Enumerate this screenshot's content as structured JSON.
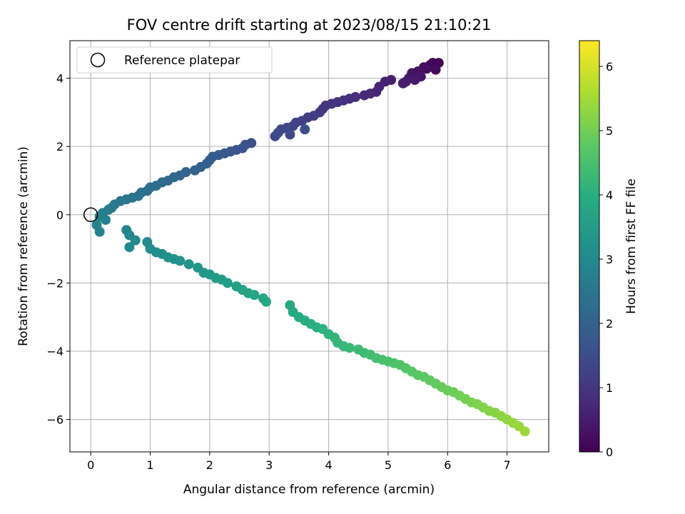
{
  "chart_data": {
    "type": "scatter",
    "title": "FOV centre drift starting at 2023/08/15 21:10:21",
    "xlabel": "Angular distance from reference (arcmin)",
    "ylabel": "Rotation from reference (arcmin)",
    "xlim": [
      -0.35,
      7.7
    ],
    "ylim": [
      -6.95,
      5.1
    ],
    "xticks": [
      0,
      1,
      2,
      3,
      4,
      5,
      6,
      7
    ],
    "yticks": [
      -6,
      -4,
      -2,
      0,
      2,
      4
    ],
    "grid": true,
    "legend": {
      "location": "top-left",
      "entries": [
        {
          "label": "Reference platepar",
          "marker": "open-circle"
        }
      ]
    },
    "reference_point": {
      "x": 0,
      "y": 0
    },
    "colorbar": {
      "label": "Hours from first FF file",
      "min": 0,
      "max": 6.4,
      "ticks": [
        0,
        1,
        2,
        3,
        4,
        5,
        6
      ],
      "colormap": "viridis"
    },
    "series": [
      {
        "description_note": "",
        "points": [
          [
            5.75,
            4.45,
            0.05
          ],
          [
            5.85,
            4.45,
            0.08
          ],
          [
            5.7,
            4.38,
            0.12
          ],
          [
            5.6,
            4.32,
            0.16
          ],
          [
            5.8,
            4.25,
            0.2
          ],
          [
            5.65,
            4.28,
            0.24
          ],
          [
            5.5,
            4.2,
            0.28
          ],
          [
            5.4,
            4.15,
            0.32
          ],
          [
            5.55,
            4.05,
            0.36
          ],
          [
            5.35,
            4.0,
            0.4
          ],
          [
            5.45,
            3.95,
            0.44
          ],
          [
            5.3,
            3.9,
            0.48
          ],
          [
            5.25,
            3.85,
            0.52
          ],
          [
            5.05,
            3.95,
            0.56
          ],
          [
            4.95,
            3.9,
            0.6
          ],
          [
            4.85,
            3.75,
            0.64
          ],
          [
            4.8,
            3.6,
            0.68
          ],
          [
            4.7,
            3.55,
            0.72
          ],
          [
            4.6,
            3.5,
            0.76
          ],
          [
            4.45,
            3.45,
            0.8
          ],
          [
            4.35,
            3.4,
            0.84
          ],
          [
            4.25,
            3.35,
            0.88
          ],
          [
            4.15,
            3.3,
            0.92
          ],
          [
            4.05,
            3.25,
            0.96
          ],
          [
            3.95,
            3.2,
            1.0
          ],
          [
            3.9,
            3.1,
            1.04
          ],
          [
            3.85,
            3.0,
            1.08
          ],
          [
            3.75,
            2.9,
            1.12
          ],
          [
            3.65,
            2.85,
            1.16
          ],
          [
            3.55,
            2.75,
            1.2
          ],
          [
            3.45,
            2.7,
            1.24
          ],
          [
            3.4,
            2.6,
            1.28
          ],
          [
            3.3,
            2.55,
            1.32
          ],
          [
            3.2,
            2.5,
            1.36
          ],
          [
            3.15,
            2.4,
            1.4
          ],
          [
            3.1,
            2.3,
            1.44
          ],
          [
            3.35,
            2.35,
            1.48
          ],
          [
            3.6,
            2.5,
            1.52
          ],
          [
            2.7,
            2.1,
            1.56
          ],
          [
            2.6,
            2.05,
            1.6
          ],
          [
            2.55,
            1.95,
            1.64
          ],
          [
            2.45,
            1.9,
            1.68
          ],
          [
            2.35,
            1.85,
            1.72
          ],
          [
            2.25,
            1.8,
            1.76
          ],
          [
            2.15,
            1.75,
            1.8
          ],
          [
            2.05,
            1.7,
            1.84
          ],
          [
            2.0,
            1.6,
            1.88
          ],
          [
            1.95,
            1.5,
            1.92
          ],
          [
            1.85,
            1.4,
            1.96
          ],
          [
            1.75,
            1.3,
            2.0
          ],
          [
            1.6,
            1.25,
            2.04
          ],
          [
            1.5,
            1.15,
            2.08
          ],
          [
            1.4,
            1.1,
            2.12
          ],
          [
            1.3,
            1.0,
            2.16
          ],
          [
            1.2,
            0.95,
            2.2
          ],
          [
            1.1,
            0.85,
            2.24
          ],
          [
            1.0,
            0.8,
            2.28
          ],
          [
            0.95,
            0.7,
            2.32
          ],
          [
            0.85,
            0.65,
            2.36
          ],
          [
            0.8,
            0.55,
            2.4
          ],
          [
            0.7,
            0.5,
            2.44
          ],
          [
            0.6,
            0.45,
            2.48
          ],
          [
            0.5,
            0.4,
            2.52
          ],
          [
            0.4,
            0.3,
            2.56
          ],
          [
            0.35,
            0.2,
            2.6
          ],
          [
            0.3,
            0.15,
            2.64
          ],
          [
            0.2,
            0.05,
            2.68
          ],
          [
            0.15,
            -0.05,
            2.72
          ],
          [
            0.25,
            -0.15,
            2.76
          ],
          [
            0.1,
            -0.3,
            2.8
          ],
          [
            0.15,
            -0.5,
            2.84
          ],
          [
            0.6,
            -0.45,
            2.88
          ],
          [
            0.65,
            -0.6,
            2.92
          ],
          [
            0.75,
            -0.75,
            2.96
          ],
          [
            0.65,
            -0.95,
            3.0
          ],
          [
            0.95,
            -0.8,
            3.04
          ],
          [
            1.0,
            -1.0,
            3.08
          ],
          [
            1.1,
            -1.1,
            3.12
          ],
          [
            1.2,
            -1.15,
            3.16
          ],
          [
            1.3,
            -1.25,
            3.2
          ],
          [
            1.4,
            -1.3,
            3.24
          ],
          [
            1.5,
            -1.35,
            3.28
          ],
          [
            1.65,
            -1.45,
            3.32
          ],
          [
            1.8,
            -1.55,
            3.36
          ],
          [
            1.9,
            -1.7,
            3.4
          ],
          [
            2.0,
            -1.75,
            3.44
          ],
          [
            2.1,
            -1.85,
            3.48
          ],
          [
            2.2,
            -1.9,
            3.52
          ],
          [
            2.3,
            -2.0,
            3.56
          ],
          [
            2.45,
            -2.1,
            3.6
          ],
          [
            2.55,
            -2.2,
            3.64
          ],
          [
            2.65,
            -2.3,
            3.68
          ],
          [
            2.75,
            -2.35,
            3.72
          ],
          [
            2.9,
            -2.45,
            3.76
          ],
          [
            2.95,
            -2.55,
            3.8
          ],
          [
            3.35,
            -2.65,
            3.84
          ],
          [
            3.4,
            -2.85,
            3.88
          ],
          [
            3.5,
            -3.0,
            3.92
          ],
          [
            3.6,
            -3.1,
            3.96
          ],
          [
            3.7,
            -3.2,
            4.0
          ],
          [
            3.8,
            -3.3,
            4.04
          ],
          [
            3.9,
            -3.35,
            4.08
          ],
          [
            4.0,
            -3.5,
            4.12
          ],
          [
            4.1,
            -3.6,
            4.16
          ],
          [
            4.15,
            -3.75,
            4.2
          ],
          [
            4.25,
            -3.85,
            4.24
          ],
          [
            4.35,
            -3.9,
            4.28
          ],
          [
            4.5,
            -3.95,
            4.32
          ],
          [
            4.6,
            -4.05,
            4.36
          ],
          [
            4.7,
            -4.1,
            4.4
          ],
          [
            4.8,
            -4.2,
            4.44
          ],
          [
            4.9,
            -4.25,
            4.48
          ],
          [
            5.0,
            -4.3,
            4.52
          ],
          [
            5.1,
            -4.35,
            4.56
          ],
          [
            5.2,
            -4.4,
            4.6
          ],
          [
            5.3,
            -4.5,
            4.64
          ],
          [
            5.4,
            -4.6,
            4.68
          ],
          [
            5.5,
            -4.7,
            4.72
          ],
          [
            5.6,
            -4.75,
            4.76
          ],
          [
            5.7,
            -4.85,
            4.8
          ],
          [
            5.8,
            -4.95,
            4.84
          ],
          [
            5.9,
            -5.05,
            4.88
          ],
          [
            6.0,
            -5.15,
            4.92
          ],
          [
            6.1,
            -5.2,
            4.96
          ],
          [
            6.2,
            -5.3,
            5.0
          ],
          [
            6.3,
            -5.4,
            5.04
          ],
          [
            6.4,
            -5.5,
            5.08
          ],
          [
            6.5,
            -5.55,
            5.12
          ],
          [
            6.6,
            -5.65,
            5.16
          ],
          [
            6.7,
            -5.75,
            5.2
          ],
          [
            6.8,
            -5.8,
            5.24
          ],
          [
            6.9,
            -5.9,
            5.28
          ],
          [
            7.0,
            -6.0,
            5.32
          ],
          [
            7.1,
            -6.1,
            5.36
          ],
          [
            7.2,
            -6.2,
            5.4
          ],
          [
            7.3,
            -6.35,
            5.44
          ]
        ]
      }
    ]
  }
}
